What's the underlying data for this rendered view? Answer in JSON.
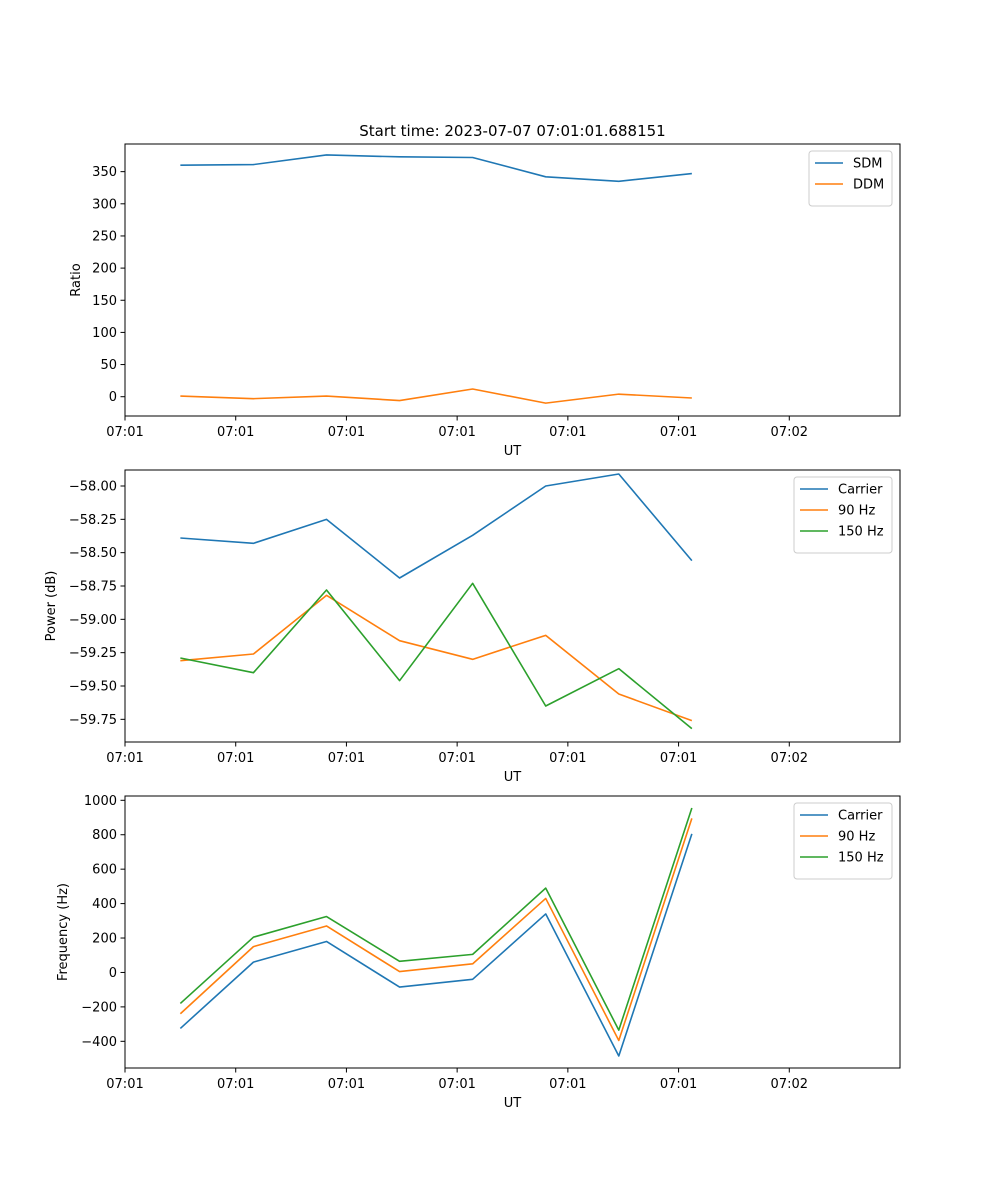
{
  "figure_title": "Start time: 2023-07-07 07:01:01.688151",
  "colors": {
    "blue": "#1f77b4",
    "orange": "#ff7f0e",
    "green": "#2ca02c"
  },
  "chart_data": [
    {
      "type": "line",
      "title": "Start time: 2023-07-07 07:01:01.688151",
      "xlabel": "UT",
      "ylabel": "Ratio",
      "xlim": [
        0,
        7
      ],
      "ylim": [
        -30,
        393
      ],
      "xticks": [
        0,
        1,
        2,
        3,
        4,
        5,
        6
      ],
      "xtick_labels": [
        "07:01",
        "07:01",
        "07:01",
        "07:01",
        "07:01",
        "07:01",
        "07:02"
      ],
      "yticks": [
        0,
        50,
        100,
        150,
        200,
        250,
        300,
        350
      ],
      "ytick_labels": [
        "0",
        "50",
        "100",
        "150",
        "200",
        "250",
        "300",
        "350"
      ],
      "x": [
        0.5,
        1.16,
        1.82,
        2.48,
        3.14,
        3.8,
        4.46,
        5.12
      ],
      "legend_position": "top-right",
      "series": [
        {
          "name": "SDM",
          "color": "#1f77b4",
          "values": [
            360,
            361,
            376,
            373,
            372,
            342,
            335,
            347
          ]
        },
        {
          "name": "DDM",
          "color": "#ff7f0e",
          "values": [
            1,
            -3,
            1,
            -6,
            12,
            -10,
            4,
            -2
          ]
        }
      ]
    },
    {
      "type": "line",
      "xlabel": "UT",
      "ylabel": "Power (dB)",
      "xlim": [
        0,
        7
      ],
      "ylim": [
        -59.92,
        -57.88
      ],
      "xticks": [
        0,
        1,
        2,
        3,
        4,
        5,
        6
      ],
      "xtick_labels": [
        "07:01",
        "07:01",
        "07:01",
        "07:01",
        "07:01",
        "07:01",
        "07:02"
      ],
      "yticks": [
        -59.75,
        -59.5,
        -59.25,
        -59.0,
        -58.75,
        -58.5,
        -58.25,
        -58.0
      ],
      "ytick_labels": [
        "−59.75",
        "−59.50",
        "−59.25",
        "−59.00",
        "−58.75",
        "−58.50",
        "−58.25",
        "−58.00"
      ],
      "x": [
        0.5,
        1.16,
        1.82,
        2.48,
        3.14,
        3.8,
        4.46,
        5.12
      ],
      "legend_position": "top-right",
      "series": [
        {
          "name": "Carrier",
          "color": "#1f77b4",
          "values": [
            -58.39,
            -58.43,
            -58.25,
            -58.69,
            -58.37,
            -58.0,
            -57.91,
            -58.56
          ]
        },
        {
          "name": "90 Hz",
          "color": "#ff7f0e",
          "values": [
            -59.31,
            -59.26,
            -58.82,
            -59.16,
            -59.3,
            -59.12,
            -59.56,
            -59.76
          ]
        },
        {
          "name": "150 Hz",
          "color": "#2ca02c",
          "values": [
            -59.29,
            -59.4,
            -58.78,
            -59.46,
            -58.73,
            -59.65,
            -59.37,
            -59.82
          ]
        }
      ]
    },
    {
      "type": "line",
      "xlabel": "UT",
      "ylabel": "Frequency (Hz)",
      "xlim": [
        0,
        7
      ],
      "ylim": [
        -555,
        1025
      ],
      "xticks": [
        0,
        1,
        2,
        3,
        4,
        5,
        6
      ],
      "xtick_labels": [
        "07:01",
        "07:01",
        "07:01",
        "07:01",
        "07:01",
        "07:01",
        "07:02"
      ],
      "yticks": [
        -400,
        -200,
        0,
        200,
        400,
        600,
        800,
        1000
      ],
      "ytick_labels": [
        "−400",
        "−200",
        "0",
        "200",
        "400",
        "600",
        "800",
        "1000"
      ],
      "x": [
        0.5,
        1.16,
        1.82,
        2.48,
        3.14,
        3.8,
        4.46,
        5.12
      ],
      "legend_position": "top-right",
      "series": [
        {
          "name": "Carrier",
          "color": "#1f77b4",
          "values": [
            -325,
            60,
            180,
            -85,
            -40,
            340,
            -485,
            805
          ]
        },
        {
          "name": "90 Hz",
          "color": "#ff7f0e",
          "values": [
            -240,
            150,
            270,
            5,
            50,
            430,
            -395,
            895
          ]
        },
        {
          "name": "150 Hz",
          "color": "#2ca02c",
          "values": [
            -180,
            205,
            325,
            65,
            105,
            490,
            -335,
            955
          ]
        }
      ]
    }
  ]
}
